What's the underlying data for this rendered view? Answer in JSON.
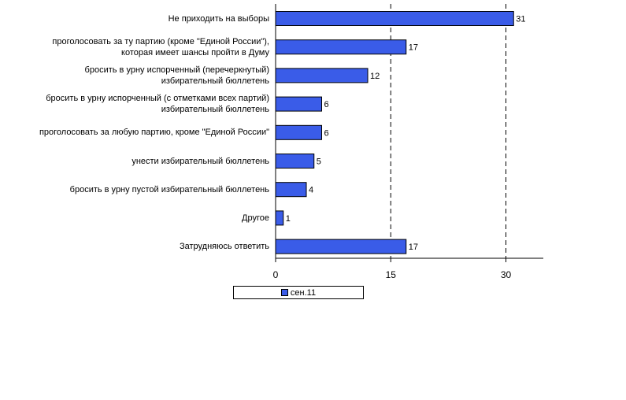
{
  "chart_data": {
    "type": "bar",
    "orientation": "horizontal",
    "categories": [
      "Не приходить на выборы",
      "проголосовать за ту партию (кроме \"Единой России\"),\nкоторая имеет шансы пройти в Думу",
      "бросить в урну испорченный (перечеркнутый)\nизбирательный бюллетень",
      "бросить в урну испорченный (с отметками всех партий)\nизбирательный бюллетень",
      "проголосовать за любую партию, кроме \"Единой России\"",
      "унести избирательный бюллетень",
      "бросить в урну пустой избирательный бюллетень",
      "Другое",
      "Затрудняюсь ответить"
    ],
    "series": [
      {
        "name": "сен.11",
        "values": [
          31,
          17,
          12,
          6,
          6,
          5,
          4,
          1,
          17
        ]
      }
    ],
    "xlim": [
      0,
      35
    ],
    "xticks": [
      "0",
      "15",
      "30"
    ],
    "grid": "dashed vertical at 15 and 30",
    "legend": "bottom",
    "colors": {
      "bar": "#3a5ce8",
      "bar_border": "#000000"
    }
  }
}
